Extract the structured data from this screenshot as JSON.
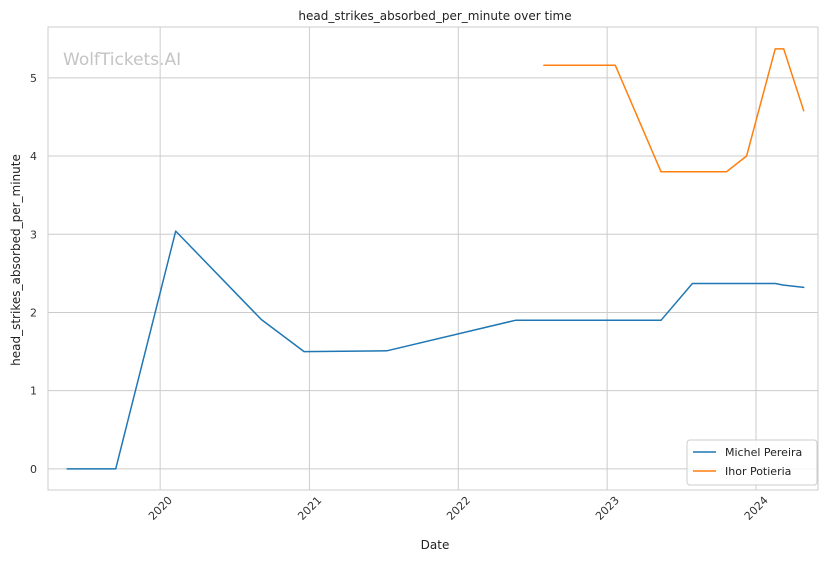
{
  "chart_data": {
    "type": "line",
    "title": "head_strikes_absorbed_per_minute over time",
    "xlabel": "Date",
    "ylabel": "head_strikes_absorbed_per_minute",
    "watermark": "WolfTickets.AI",
    "x_ticks": [
      "2020",
      "2021",
      "2022",
      "2023",
      "2024"
    ],
    "y_ticks": [
      "0",
      "1",
      "2",
      "3",
      "4",
      "5"
    ],
    "xlim": [
      "2019-04-01",
      "2024-06-01"
    ],
    "ylim": [
      -0.27,
      5.65
    ],
    "grid": true,
    "legend_position": "lower-right",
    "series": [
      {
        "name": "Michel Pereira",
        "color": "#1f77b4",
        "points": [
          {
            "x": "2019-05-18",
            "y": 0.0
          },
          {
            "x": "2019-09-14",
            "y": 0.0
          },
          {
            "x": "2020-02-08",
            "y": 3.04
          },
          {
            "x": "2020-09-05",
            "y": 1.91
          },
          {
            "x": "2020-12-19",
            "y": 1.5
          },
          {
            "x": "2021-07-10",
            "y": 1.51
          },
          {
            "x": "2022-05-21",
            "y": 1.9
          },
          {
            "x": "2023-05-13",
            "y": 1.9
          },
          {
            "x": "2023-07-29",
            "y": 2.37
          },
          {
            "x": "2024-02-17",
            "y": 2.37
          },
          {
            "x": "2024-03-09",
            "y": 2.35
          },
          {
            "x": "2024-04-27",
            "y": 2.32
          }
        ]
      },
      {
        "name": "Ihor Potieria",
        "color": "#ff7f0e",
        "points": [
          {
            "x": "2022-07-30",
            "y": 5.16
          },
          {
            "x": "2023-01-21",
            "y": 5.16
          },
          {
            "x": "2023-05-13",
            "y": 3.8
          },
          {
            "x": "2023-10-21",
            "y": 3.8
          },
          {
            "x": "2023-12-09",
            "y": 4.0
          },
          {
            "x": "2024-02-17",
            "y": 5.37
          },
          {
            "x": "2024-03-09",
            "y": 5.37
          },
          {
            "x": "2024-04-27",
            "y": 4.58
          }
        ]
      }
    ]
  }
}
